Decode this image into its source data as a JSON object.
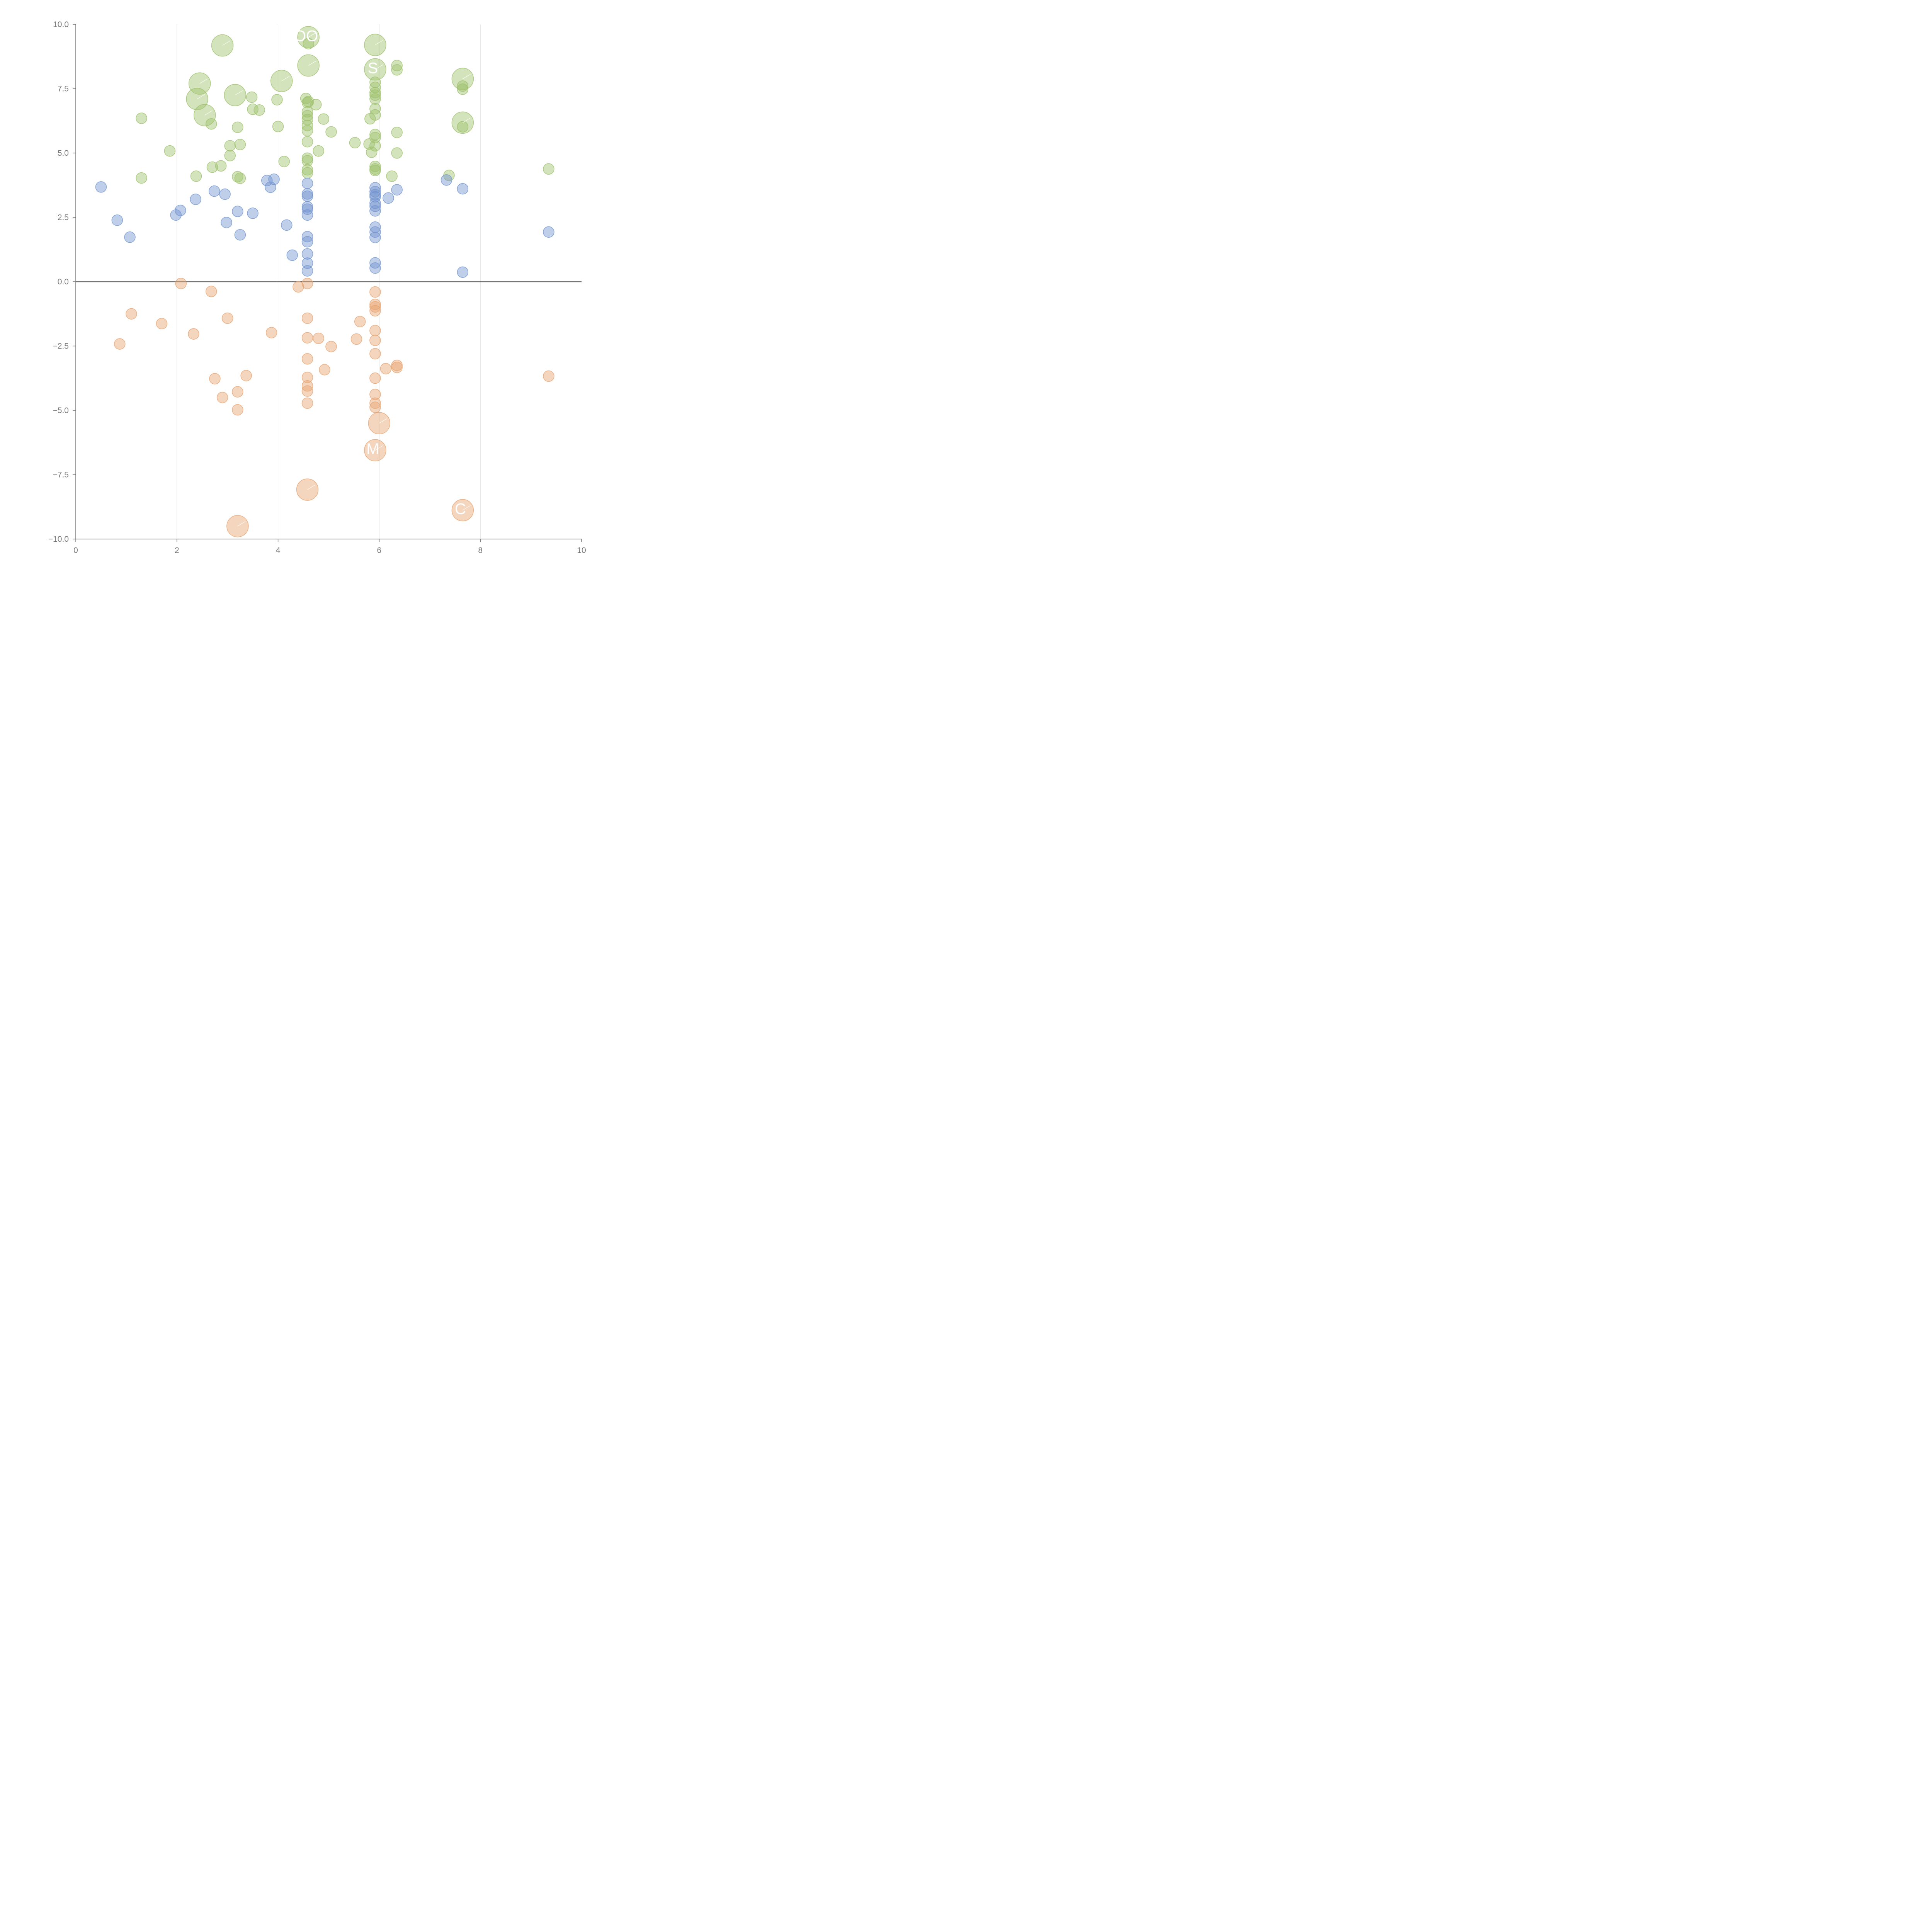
{
  "chart_data": {
    "type": "scatter",
    "title": "",
    "xlabel": "",
    "ylabel": "",
    "xlim": [
      0,
      10
    ],
    "ylim": [
      -10,
      10
    ],
    "x_ticks": [
      "0",
      "2",
      "4",
      "6",
      "8",
      "10"
    ],
    "y_ticks": [
      "10.0",
      "7.5",
      "5.0",
      "2.5",
      "0.0",
      "−2.5",
      "−5.0",
      "−7.5",
      "−10.0"
    ],
    "grid": "vertical lines at x ticks",
    "reference_line_y": 0,
    "colors": {
      "green": "#9dc16b",
      "blue": "#7093cf",
      "orange": "#e7a36f",
      "axis": "#666666",
      "grid": "#dddddd"
    },
    "series": [
      {
        "color_key": "green",
        "points": [
          [
            1.3,
            6.35
          ],
          [
            1.3,
            4.03
          ],
          [
            1.86,
            5.08
          ],
          [
            2.38,
            4.1
          ],
          [
            2.7,
            4.45
          ],
          [
            2.87,
            4.5
          ],
          [
            3.05,
            5.28
          ],
          [
            3.05,
            4.9
          ],
          [
            3.25,
            5.33
          ],
          [
            3.2,
            6.0
          ],
          [
            3.2,
            4.08
          ],
          [
            3.25,
            4.02
          ],
          [
            2.68,
            6.13
          ],
          [
            3.48,
            7.17
          ],
          [
            3.5,
            6.7
          ],
          [
            3.63,
            6.67
          ],
          [
            3.98,
            7.07
          ],
          [
            4.0,
            6.03
          ],
          [
            4.12,
            4.67
          ],
          [
            4.55,
            7.12
          ],
          [
            4.58,
            6.96
          ],
          [
            4.6,
            7.0
          ],
          [
            4.58,
            6.6
          ],
          [
            4.58,
            6.45
          ],
          [
            4.58,
            6.3
          ],
          [
            4.58,
            6.07
          ],
          [
            4.58,
            5.87
          ],
          [
            4.58,
            5.44
          ],
          [
            4.58,
            4.8
          ],
          [
            4.58,
            4.7
          ],
          [
            4.58,
            4.35
          ],
          [
            4.58,
            4.23
          ],
          [
            4.6,
            9.25
          ],
          [
            4.75,
            6.88
          ],
          [
            4.8,
            5.08
          ],
          [
            4.9,
            6.32
          ],
          [
            5.05,
            5.82
          ],
          [
            5.52,
            5.4
          ],
          [
            5.8,
            5.35
          ],
          [
            5.82,
            6.33
          ],
          [
            5.85,
            5.03
          ],
          [
            5.92,
            7.75
          ],
          [
            5.92,
            7.55
          ],
          [
            5.92,
            7.35
          ],
          [
            5.92,
            7.25
          ],
          [
            5.92,
            7.1
          ],
          [
            5.92,
            6.72
          ],
          [
            5.92,
            6.48
          ],
          [
            5.92,
            5.72
          ],
          [
            5.92,
            5.6
          ],
          [
            5.92,
            5.28
          ],
          [
            5.92,
            4.48
          ],
          [
            5.92,
            4.38
          ],
          [
            5.92,
            4.32
          ],
          [
            6.25,
            4.1
          ],
          [
            6.35,
            8.4
          ],
          [
            6.35,
            8.23
          ],
          [
            6.35,
            5.8
          ],
          [
            6.35,
            5.0
          ],
          [
            7.38,
            4.13
          ],
          [
            7.65,
            7.6
          ],
          [
            7.65,
            7.48
          ],
          [
            7.65,
            6.02
          ],
          [
            9.35,
            4.38
          ]
        ]
      },
      {
        "color_key": "blue",
        "points": [
          [
            0.5,
            3.68
          ],
          [
            0.82,
            2.39
          ],
          [
            1.07,
            1.73
          ],
          [
            1.98,
            2.59
          ],
          [
            2.07,
            2.77
          ],
          [
            2.37,
            3.2
          ],
          [
            2.74,
            3.52
          ],
          [
            2.95,
            3.4
          ],
          [
            2.98,
            2.3
          ],
          [
            3.2,
            2.73
          ],
          [
            3.25,
            1.82
          ],
          [
            3.5,
            2.66
          ],
          [
            3.78,
            3.93
          ],
          [
            3.85,
            3.67
          ],
          [
            3.92,
            3.98
          ],
          [
            4.17,
            2.2
          ],
          [
            4.28,
            1.03
          ],
          [
            4.58,
            3.82
          ],
          [
            4.58,
            3.41
          ],
          [
            4.58,
            3.32
          ],
          [
            4.58,
            2.91
          ],
          [
            4.58,
            2.82
          ],
          [
            4.58,
            2.59
          ],
          [
            4.58,
            1.75
          ],
          [
            4.58,
            1.55
          ],
          [
            4.58,
            1.08
          ],
          [
            4.58,
            0.72
          ],
          [
            4.58,
            0.42
          ],
          [
            5.92,
            3.65
          ],
          [
            5.92,
            3.5
          ],
          [
            5.92,
            3.38
          ],
          [
            5.92,
            3.3
          ],
          [
            5.92,
            3.05
          ],
          [
            5.92,
            2.93
          ],
          [
            5.92,
            2.75
          ],
          [
            5.92,
            2.12
          ],
          [
            5.92,
            1.93
          ],
          [
            5.92,
            1.72
          ],
          [
            5.92,
            0.73
          ],
          [
            5.92,
            0.53
          ],
          [
            6.18,
            3.25
          ],
          [
            6.35,
            3.57
          ],
          [
            7.33,
            3.95
          ],
          [
            7.65,
            3.61
          ],
          [
            7.65,
            0.37
          ],
          [
            9.35,
            1.93
          ]
        ]
      },
      {
        "color_key": "orange",
        "points": [
          [
            2.08,
            -0.07
          ],
          [
            2.68,
            -0.38
          ],
          [
            1.1,
            -1.25
          ],
          [
            1.7,
            -1.63
          ],
          [
            0.87,
            -2.42
          ],
          [
            2.33,
            -2.03
          ],
          [
            3.0,
            -1.42
          ],
          [
            2.75,
            -3.77
          ],
          [
            2.9,
            -4.5
          ],
          [
            3.2,
            -4.28
          ],
          [
            3.2,
            -4.98
          ],
          [
            3.37,
            -3.65
          ],
          [
            3.87,
            -1.98
          ],
          [
            4.4,
            -0.2
          ],
          [
            4.58,
            -0.07
          ],
          [
            4.58,
            -1.42
          ],
          [
            4.58,
            -2.18
          ],
          [
            4.58,
            -3.0
          ],
          [
            4.58,
            -3.72
          ],
          [
            4.58,
            -4.05
          ],
          [
            4.58,
            -4.25
          ],
          [
            4.58,
            -4.72
          ],
          [
            4.8,
            -2.2
          ],
          [
            4.92,
            -3.42
          ],
          [
            5.05,
            -2.52
          ],
          [
            5.55,
            -2.23
          ],
          [
            5.62,
            -1.55
          ],
          [
            5.92,
            -0.4
          ],
          [
            5.92,
            -0.88
          ],
          [
            5.92,
            -0.98
          ],
          [
            5.92,
            -1.13
          ],
          [
            5.92,
            -1.9
          ],
          [
            5.92,
            -2.28
          ],
          [
            5.92,
            -2.8
          ],
          [
            5.92,
            -3.75
          ],
          [
            5.92,
            -4.38
          ],
          [
            5.92,
            -4.72
          ],
          [
            5.92,
            -4.88
          ],
          [
            6.13,
            -3.38
          ],
          [
            6.35,
            -3.25
          ],
          [
            6.35,
            -3.33
          ],
          [
            9.35,
            -3.67
          ]
        ]
      }
    ],
    "labeled_points": [
      {
        "x": 2.9,
        "y": 9.18,
        "color_key": "green",
        "label": ""
      },
      {
        "x": 4.6,
        "y": 9.5,
        "color_key": "green",
        "label": "OO"
      },
      {
        "x": 4.6,
        "y": 8.4,
        "color_key": "green",
        "label": ""
      },
      {
        "x": 5.92,
        "y": 9.2,
        "color_key": "green",
        "label": ""
      },
      {
        "x": 5.92,
        "y": 8.25,
        "color_key": "green",
        "label": "S"
      },
      {
        "x": 2.45,
        "y": 7.7,
        "color_key": "green",
        "label": ""
      },
      {
        "x": 2.4,
        "y": 7.1,
        "color_key": "green",
        "label": ""
      },
      {
        "x": 2.55,
        "y": 6.47,
        "color_key": "green",
        "label": ""
      },
      {
        "x": 3.15,
        "y": 7.25,
        "color_key": "green",
        "label": ""
      },
      {
        "x": 4.07,
        "y": 7.8,
        "color_key": "green",
        "label": ""
      },
      {
        "x": 7.65,
        "y": 7.88,
        "color_key": "green",
        "label": ""
      },
      {
        "x": 7.65,
        "y": 6.18,
        "color_key": "green",
        "label": ""
      },
      {
        "x": 6.0,
        "y": -5.5,
        "color_key": "orange",
        "label": ""
      },
      {
        "x": 5.92,
        "y": -6.55,
        "color_key": "orange",
        "label": "M"
      },
      {
        "x": 4.58,
        "y": -8.08,
        "color_key": "orange",
        "label": ""
      },
      {
        "x": 7.65,
        "y": -8.88,
        "color_key": "orange",
        "label": "C"
      },
      {
        "x": 3.2,
        "y": -9.5,
        "color_key": "orange",
        "label": ""
      }
    ]
  }
}
